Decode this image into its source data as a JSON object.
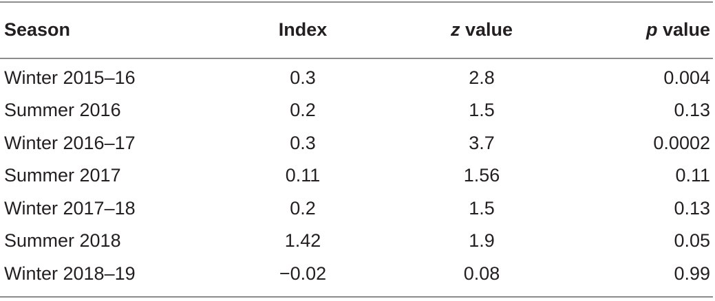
{
  "table": {
    "headers": {
      "season": "Season",
      "index": "Index",
      "z_italic": "z",
      "z_rest": " value",
      "p_italic": "p",
      "p_rest": " value"
    },
    "rows": [
      {
        "season": "Winter 2015–16",
        "index": "0.3",
        "z": "2.8",
        "p": "0.004"
      },
      {
        "season": "Summer 2016",
        "index": "0.2",
        "z": "1.5",
        "p": "0.13"
      },
      {
        "season": "Winter 2016–17",
        "index": "0.3",
        "z": "3.7",
        "p": "0.0002"
      },
      {
        "season": "Summer 2017",
        "index": "0.11",
        "z": "1.56",
        "p": "0.11"
      },
      {
        "season": "Winter 2017–18",
        "index": "0.2",
        "z": "1.5",
        "p": "0.13"
      },
      {
        "season": "Summer 2018",
        "index": "1.42",
        "z": "1.9",
        "p": "0.05"
      },
      {
        "season": "Winter 2018–19",
        "index": "−0.02",
        "z": "0.08",
        "p": "0.99"
      }
    ]
  }
}
